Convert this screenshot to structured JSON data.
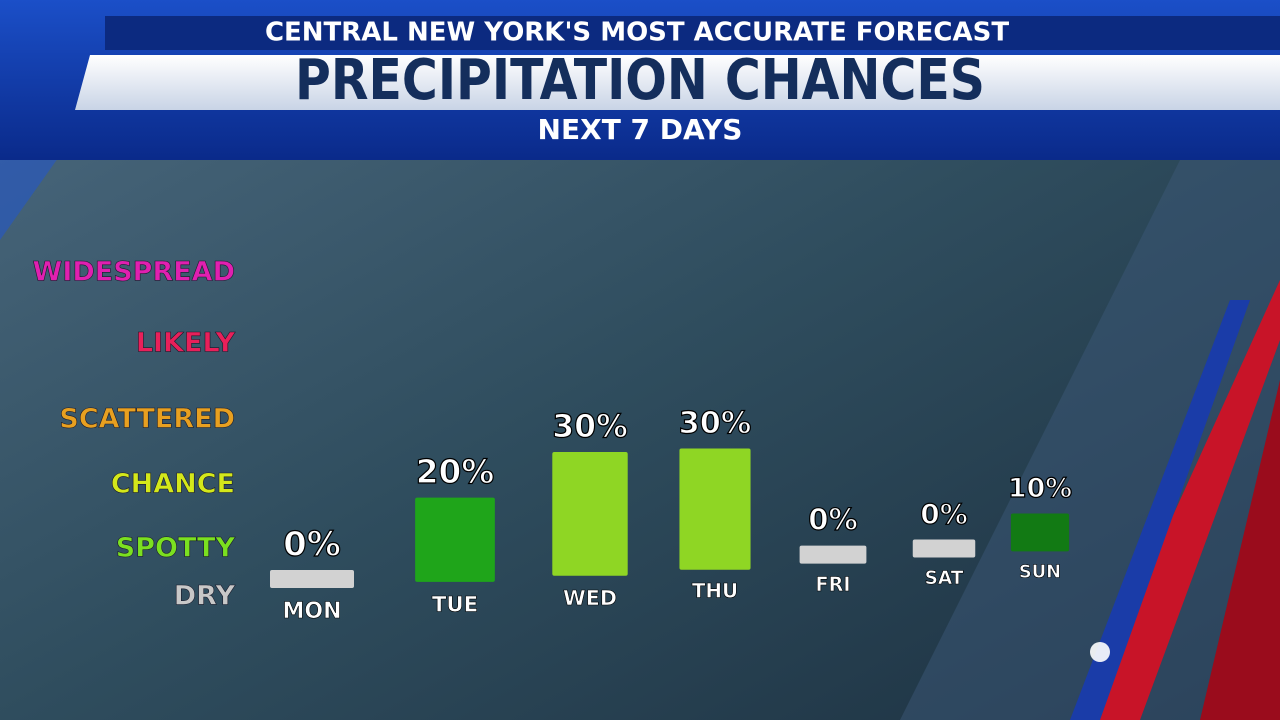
{
  "header": {
    "tagline": "CENTRAL NEW YORK'S MOST ACCURATE FORECAST"
  },
  "chart_data": {
    "type": "bar",
    "title": "PRECIPITATION CHANCES",
    "subtitle": "NEXT 7 DAYS",
    "levels": [
      {
        "label": "WIDESPREAD",
        "color": "#e020b0"
      },
      {
        "label": "LIKELY",
        "color": "#e8205a"
      },
      {
        "label": "SCATTERED",
        "color": "#e8a020"
      },
      {
        "label": "CHANCE",
        "color": "#d4e81a"
      },
      {
        "label": "SPOTTY",
        "color": "#7be020"
      },
      {
        "label": "DRY",
        "color": "#c8c8c8"
      }
    ],
    "categories": [
      "MON",
      "TUE",
      "WED",
      "THU",
      "FRI",
      "SAT",
      "SUN"
    ],
    "values": [
      0,
      20,
      30,
      30,
      0,
      0,
      10
    ],
    "value_labels": [
      "0%",
      "20%",
      "30%",
      "30%",
      "0%",
      "0%",
      "10%"
    ],
    "colors": [
      "#d2d2d2",
      "#1fa51a",
      "#8fd624",
      "#8fd624",
      "#d2d2d2",
      "#d2d2d2",
      "#127a14"
    ]
  }
}
